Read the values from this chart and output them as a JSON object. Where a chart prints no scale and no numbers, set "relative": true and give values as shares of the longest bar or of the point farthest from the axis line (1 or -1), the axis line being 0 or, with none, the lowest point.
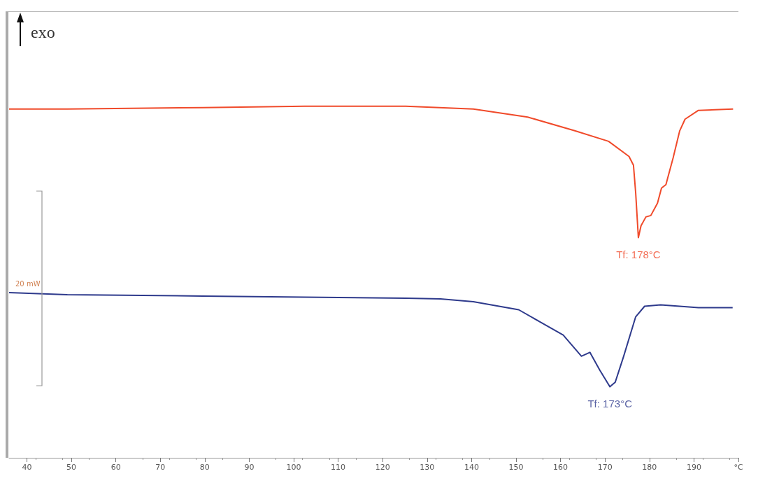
{
  "chart_data": {
    "type": "line",
    "relative": true,
    "ylabel": "exo",
    "xlim": [
      36,
      200
    ],
    "xticks": [
      40,
      50,
      60,
      70,
      80,
      90,
      100,
      110,
      120,
      130,
      140,
      150,
      160,
      170,
      180,
      190,
      {
        "value": 200,
        "label": "°C"
      }
    ],
    "grid": false,
    "marker": "none",
    "series": [
      {
        "color": "#f04a2a",
        "x": [
          36,
          49.1,
          79.6,
          102.4,
          125.2,
          140.4,
          152.6,
          163.2,
          170.8,
          175.4,
          176.4,
          176.9,
          177.5,
          178.1,
          179.2,
          180.3,
          181.8,
          182.7,
          183.7,
          185.3,
          186.8,
          188.0,
          191.0,
          198.8
        ],
        "values": [
          0.992,
          0.992,
          0.996,
          1.0,
          1.0,
          0.992,
          0.969,
          0.93,
          0.9,
          0.857,
          0.832,
          0.753,
          0.626,
          0.66,
          0.685,
          0.689,
          0.724,
          0.767,
          0.777,
          0.852,
          0.93,
          0.963,
          0.988,
          0.992
        ]
      },
      {
        "color": "#2e3a8c",
        "x": [
          36,
          49.1,
          79.6,
          110,
          125.2,
          133,
          140.4,
          150.6,
          155.6,
          160.6,
          164.7,
          166.6,
          168.8,
          171.1,
          172.3,
          174.2,
          176.9,
          178.9,
          182.5,
          191.0,
          198.7
        ],
        "values": [
          0.47,
          0.464,
          0.46,
          0.456,
          0.454,
          0.452,
          0.444,
          0.421,
          0.385,
          0.349,
          0.289,
          0.3,
          0.25,
          0.202,
          0.215,
          0.289,
          0.401,
          0.431,
          0.435,
          0.427,
          0.427
        ]
      }
    ],
    "annotations": [
      {
        "text": "Tf: 178°C",
        "x": 177.5,
        "y": 0.626
      },
      {
        "text": "Tf: 173°C",
        "x": 171.1,
        "y": 0.202
      },
      "20 mW"
    ]
  }
}
